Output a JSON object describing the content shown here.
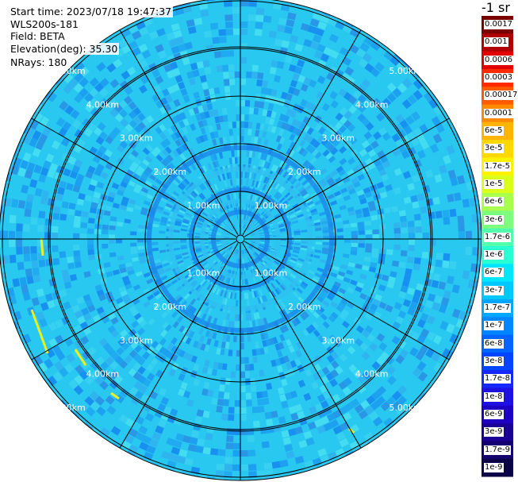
{
  "header": {
    "start_time": "Start time: 2023/07/18 19:47:37",
    "instrument": "WLS200s-181",
    "field": "Field: BETA",
    "elevation": "Elevation(deg): 35.30",
    "nrays": "NRays: 180"
  },
  "chart_data": {
    "type": "heatmap",
    "projection": "polar-ppi",
    "field": "BETA",
    "elevation_deg": 35.3,
    "n_rays": 180,
    "range_rings_km": [
      1.0,
      2.0,
      3.0,
      4.0,
      5.0
    ],
    "ring_labels": [
      "1.00km",
      "2.00km",
      "3.00km",
      "4.00km",
      "5.00km"
    ],
    "spokes_deg": [
      0,
      30,
      60,
      90,
      120,
      150,
      180,
      210,
      240,
      270,
      300,
      330
    ],
    "max_range_km": 6.2,
    "dominant_level": "1.7e-7 to 1e-8",
    "colorbar": {
      "unit": "-1 sr",
      "labels": [
        "0.0017",
        "0.001",
        "0.0006",
        "0.0003",
        "0.00017",
        "0.0001",
        "6e-5",
        "3e-5",
        "1.7e-5",
        "1e-5",
        "6e-6",
        "3e-6",
        "1.7e-6",
        "1e-6",
        "6e-7",
        "3e-7",
        "1.7e-7",
        "1e-7",
        "6e-8",
        "3e-8",
        "1.7e-8",
        "1e-8",
        "6e-9",
        "3e-9",
        "1.7e-9",
        "1e-9"
      ],
      "colors": [
        "#7a0000",
        "#b00000",
        "#e00000",
        "#ff2a00",
        "#ff5a00",
        "#ff8a00",
        "#ffb400",
        "#ffd800",
        "#fff200",
        "#d9ff1a",
        "#a8ff4d",
        "#7dff7d",
        "#52ffaa",
        "#2affd4",
        "#00e6ff",
        "#00c8ff",
        "#00a6ff",
        "#0086ff",
        "#0066ff",
        "#0046ff",
        "#1428ff",
        "#1e10e0",
        "#1e00c0",
        "#1a0096",
        "#14006e",
        "#0a0048"
      ]
    },
    "grid": true
  }
}
